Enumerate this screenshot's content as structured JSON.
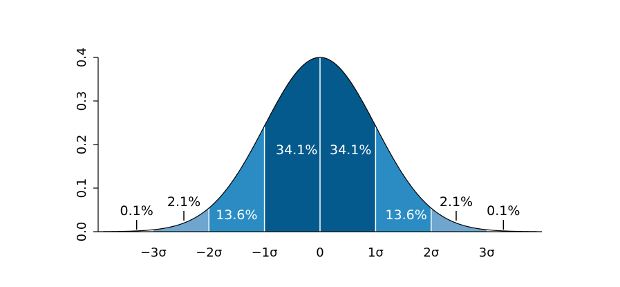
{
  "chart_data": {
    "type": "area",
    "title": "",
    "xlabel": "",
    "ylabel": "",
    "xlim": [
      -3.9,
      3.9
    ],
    "ylim": [
      0,
      0.4
    ],
    "grid": false,
    "curve": "standard normal density",
    "x_tick_values": [
      -3,
      -2,
      -1,
      0,
      1,
      2,
      3
    ],
    "x_tick_labels": [
      "−3σ",
      "−2σ",
      "−1σ",
      "0",
      "1σ",
      "2σ",
      "3σ"
    ],
    "y_tick_values": [
      0.0,
      0.1,
      0.2,
      0.3,
      0.4
    ],
    "y_tick_labels": [
      "0.0",
      "0.1",
      "0.2",
      "0.3",
      "0.4"
    ],
    "bands": [
      {
        "from": -3.9,
        "to": -3,
        "percent": "0.1%",
        "color": "#ffffff"
      },
      {
        "from": -3,
        "to": -2,
        "percent": "2.1%",
        "color": "#6ea6cf"
      },
      {
        "from": -2,
        "to": -1,
        "percent": "13.6%",
        "color": "#2b8cc4"
      },
      {
        "from": -1,
        "to": 0,
        "percent": "34.1%",
        "color": "#045a8d"
      },
      {
        "from": 0,
        "to": 1,
        "percent": "34.1%",
        "color": "#045a8d"
      },
      {
        "from": 1,
        "to": 2,
        "percent": "13.6%",
        "color": "#2b8cc4"
      },
      {
        "from": 2,
        "to": 3,
        "percent": "2.1%",
        "color": "#6ea6cf"
      },
      {
        "from": 3,
        "to": 3.9,
        "percent": "0.1%",
        "color": "#ffffff"
      }
    ],
    "outer_labels": [
      {
        "text": "0.1%",
        "x": -3.3
      },
      {
        "text": "2.1%",
        "x": -2.45
      },
      {
        "text": "2.1%",
        "x": 2.45
      },
      {
        "text": "0.1%",
        "x": 3.3
      }
    ],
    "inner_labels": [
      {
        "text": "13.6%",
        "x": -1.5,
        "color": "#ffffff"
      },
      {
        "text": "34.1%",
        "x": -0.42,
        "color": "#ffffff"
      },
      {
        "text": "34.1%",
        "x": 0.55,
        "color": "#ffffff"
      },
      {
        "text": "13.6%",
        "x": 1.55,
        "color": "#ffffff"
      }
    ],
    "colors": {
      "curve": "#000000",
      "divider": "#ffffff",
      "axis": "#000000"
    }
  }
}
